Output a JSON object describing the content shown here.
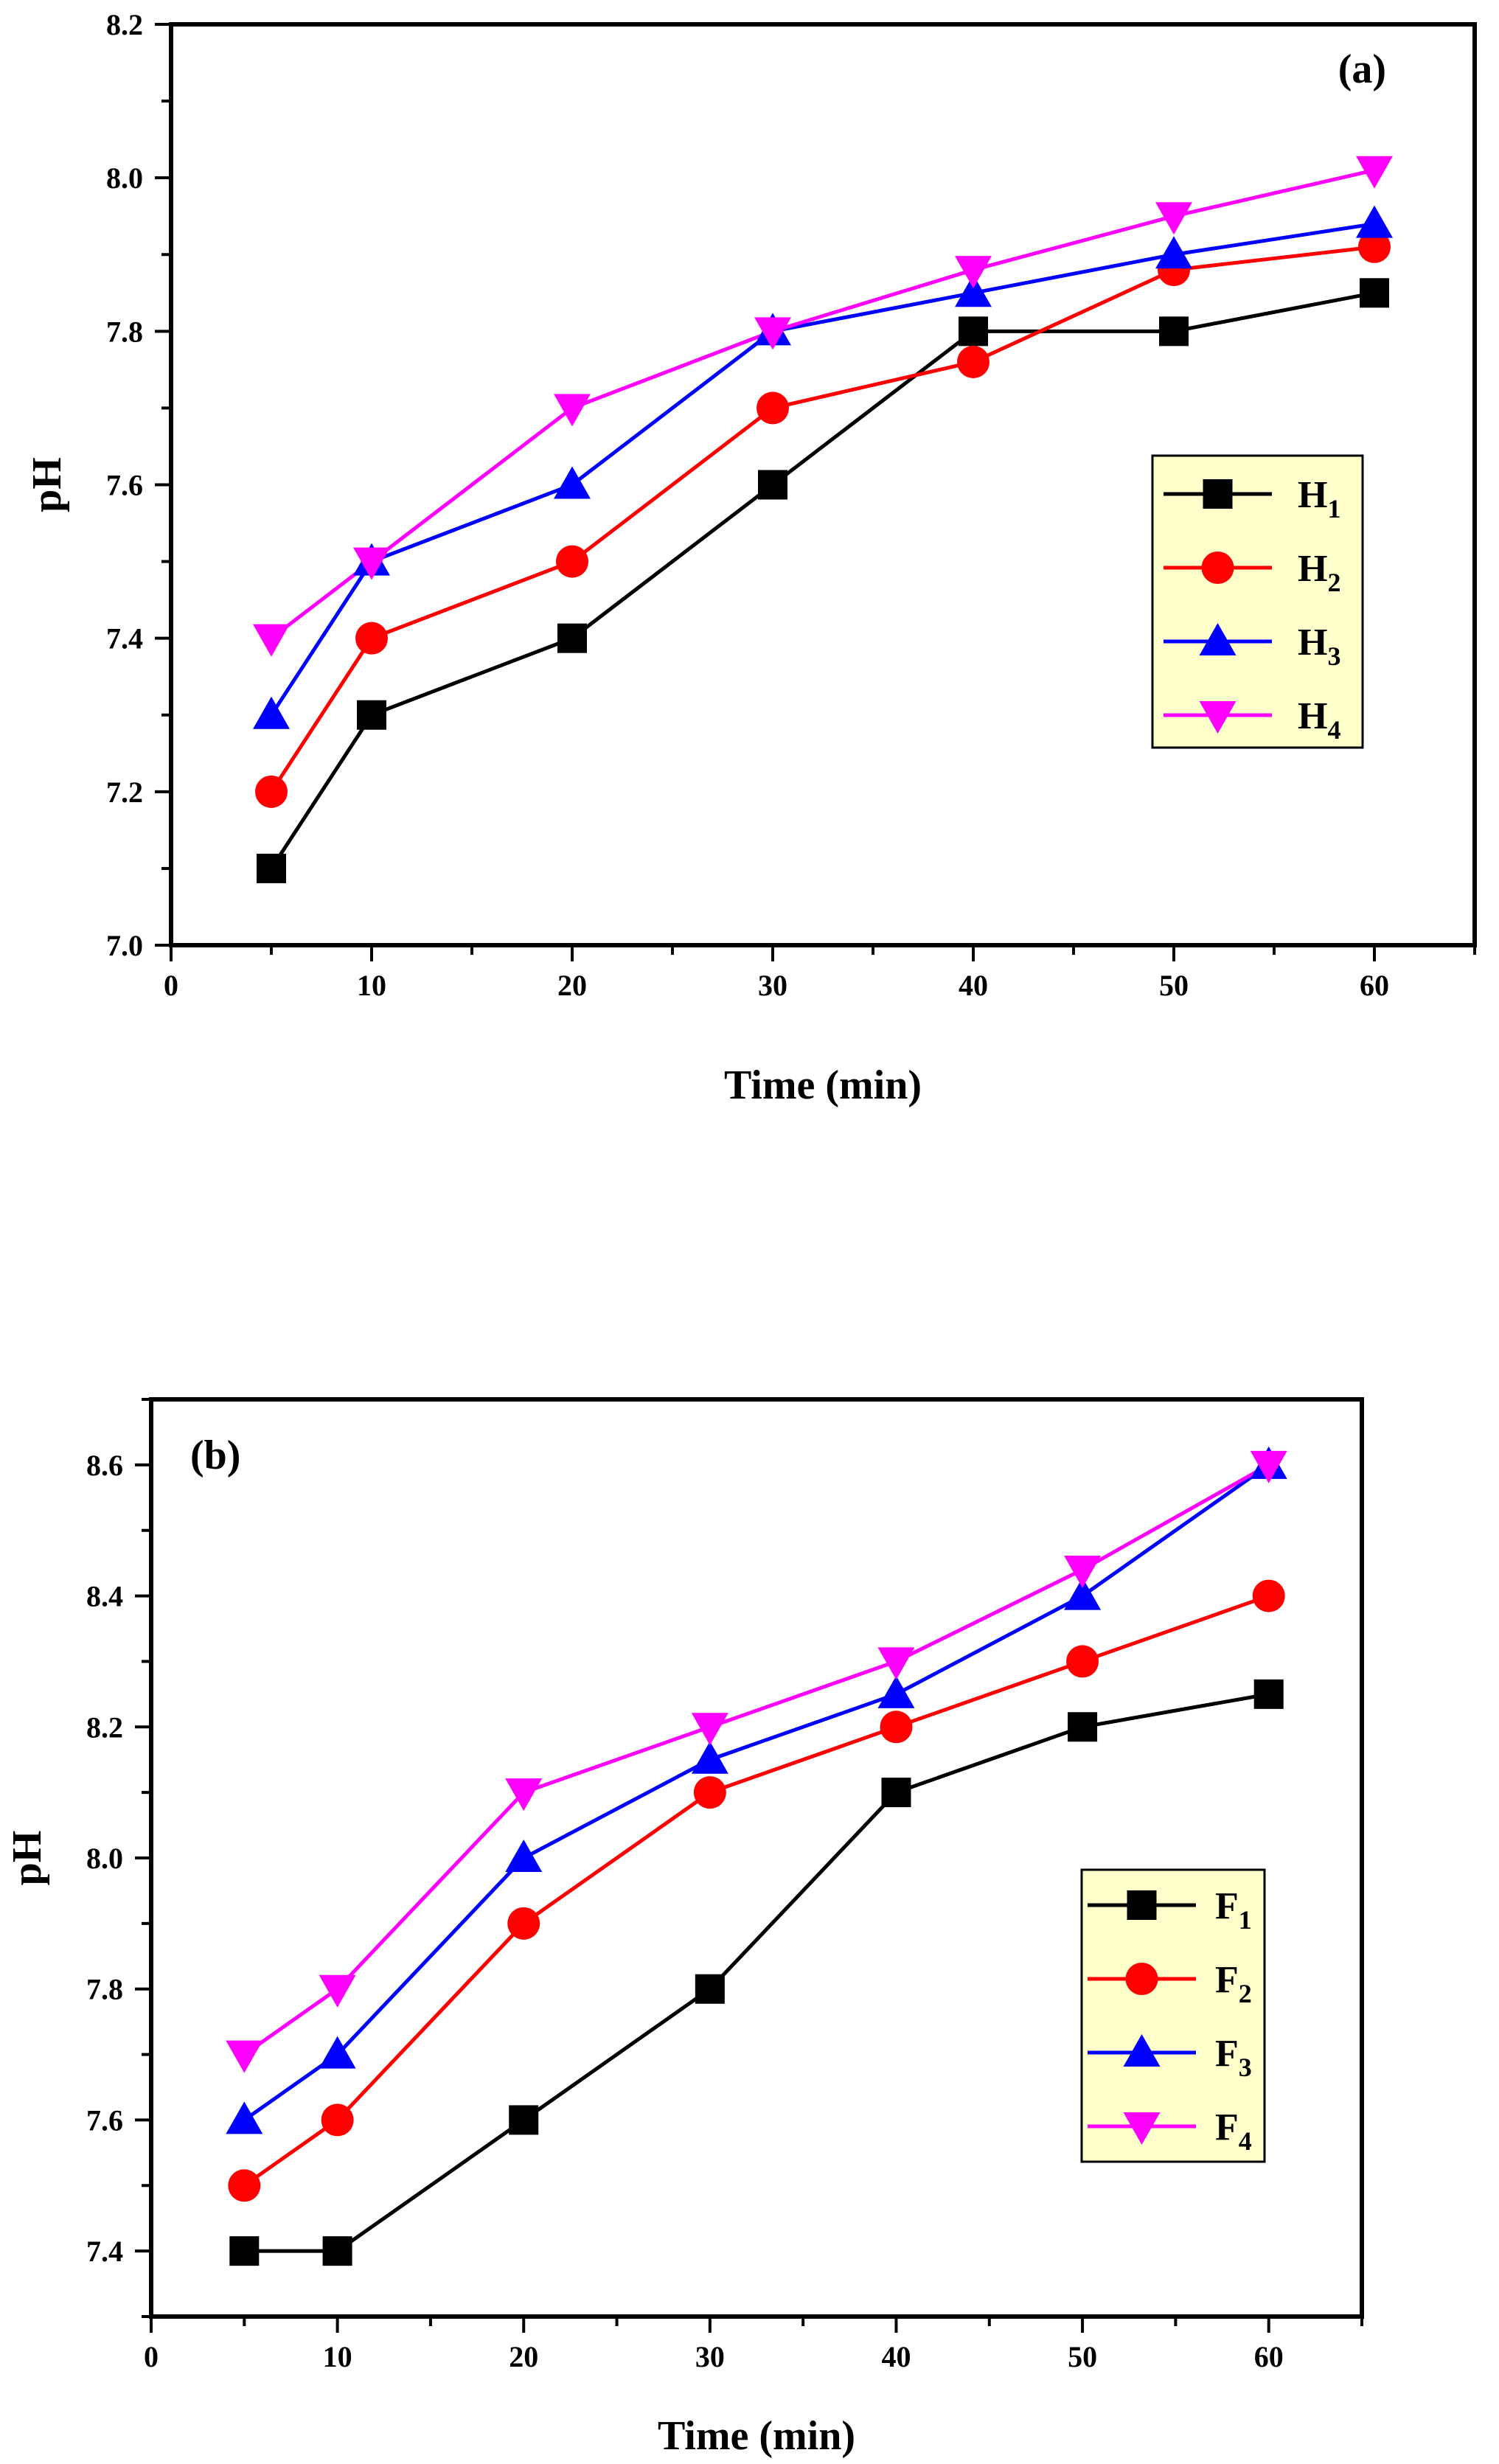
{
  "chart_data": [
    {
      "type": "line",
      "panel_label": "(a)",
      "xlabel": "Time (min)",
      "ylabel": "pH",
      "xlim": [
        0,
        65
      ],
      "ylim": [
        7.0,
        8.2
      ],
      "xticks": [
        "0",
        "10",
        "20",
        "30",
        "40",
        "50",
        "60"
      ],
      "yticks": [
        "7.0",
        "7.2",
        "7.4",
        "7.6",
        "7.8",
        "8.0",
        "8.2"
      ],
      "legend_position": "right-middle",
      "x": [
        5,
        10,
        20,
        30,
        40,
        50,
        60
      ],
      "series": [
        {
          "name": "H",
          "sub": "1",
          "color": "#000000",
          "marker": "square",
          "values": [
            7.1,
            7.3,
            7.4,
            7.6,
            7.8,
            7.8,
            7.85
          ]
        },
        {
          "name": "H",
          "sub": "2",
          "color": "#ff0000",
          "marker": "circle",
          "values": [
            7.2,
            7.4,
            7.5,
            7.7,
            7.76,
            7.88,
            7.91
          ]
        },
        {
          "name": "H",
          "sub": "3",
          "color": "#0000ff",
          "marker": "triangle-up",
          "values": [
            7.3,
            7.5,
            7.6,
            7.8,
            7.85,
            7.9,
            7.94
          ]
        },
        {
          "name": "H",
          "sub": "4",
          "color": "#ff00ff",
          "marker": "triangle-down",
          "values": [
            7.4,
            7.5,
            7.7,
            7.8,
            7.88,
            7.95,
            8.01
          ]
        }
      ]
    },
    {
      "type": "line",
      "panel_label": "(b)",
      "xlabel": "Time (min)",
      "ylabel": "pH",
      "xlim": [
        0,
        65
      ],
      "ylim": [
        7.3,
        8.7
      ],
      "xticks": [
        "0",
        "10",
        "20",
        "30",
        "40",
        "50",
        "60"
      ],
      "yticks": [
        "7.4",
        "7.6",
        "7.8",
        "8.0",
        "8.2",
        "8.4",
        "8.6"
      ],
      "legend_position": "right-middle",
      "x": [
        5,
        10,
        20,
        30,
        40,
        50,
        60
      ],
      "series": [
        {
          "name": "F",
          "sub": "1",
          "color": "#000000",
          "marker": "square",
          "values": [
            7.4,
            7.4,
            7.6,
            7.8,
            8.1,
            8.2,
            8.25
          ]
        },
        {
          "name": "F",
          "sub": "2",
          "color": "#ff0000",
          "marker": "circle",
          "values": [
            7.5,
            7.6,
            7.9,
            8.1,
            8.2,
            8.3,
            8.4
          ]
        },
        {
          "name": "F",
          "sub": "3",
          "color": "#0000ff",
          "marker": "triangle-up",
          "values": [
            7.6,
            7.7,
            8.0,
            8.15,
            8.25,
            8.4,
            8.6
          ]
        },
        {
          "name": "F",
          "sub": "4",
          "color": "#ff00ff",
          "marker": "triangle-down",
          "values": [
            7.7,
            7.8,
            8.1,
            8.2,
            8.3,
            8.44,
            8.6
          ]
        }
      ]
    }
  ]
}
